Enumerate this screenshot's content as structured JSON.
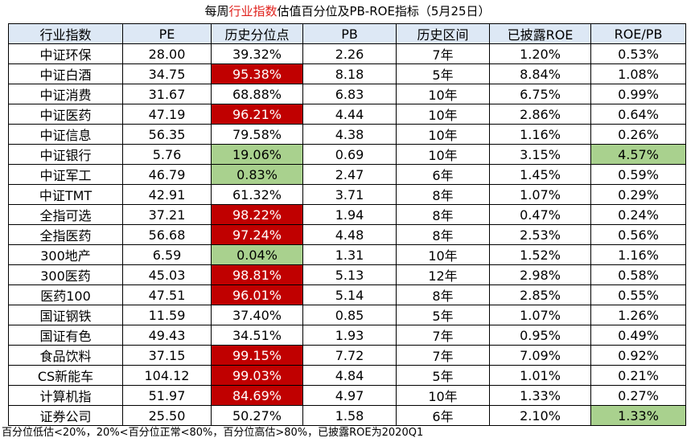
{
  "title": {
    "parts": [
      "每周",
      "行业指数",
      "估值百分位及PB-ROE指标（5月25日）"
    ]
  },
  "table": {
    "columns": [
      "行业指数",
      "PE",
      "历史分位点",
      "PB",
      "历史区间",
      "已披露ROE",
      "ROE/PB"
    ],
    "rows": [
      [
        "中证环保",
        "28.00",
        "39.32%",
        "2.26",
        "7年",
        "1.20%",
        "0.53%"
      ],
      [
        "中证白酒",
        "34.75",
        "95.38%",
        "8.18",
        "5年",
        "8.84%",
        "1.08%"
      ],
      [
        "中证消费",
        "31.67",
        "68.88%",
        "6.83",
        "10年",
        "6.75%",
        "0.99%"
      ],
      [
        "中证医药",
        "47.19",
        "96.21%",
        "4.44",
        "10年",
        "2.86%",
        "0.64%"
      ],
      [
        "中证信息",
        "56.35",
        "79.58%",
        "4.38",
        "10年",
        "1.16%",
        "0.26%"
      ],
      [
        "中证银行",
        "5.76",
        "19.06%",
        "0.69",
        "10年",
        "3.15%",
        "4.57%"
      ],
      [
        "中证军工",
        "46.79",
        "0.83%",
        "2.47",
        "6年",
        "1.45%",
        "0.59%"
      ],
      [
        "中证TMT",
        "42.91",
        "61.32%",
        "3.71",
        "8年",
        "1.07%",
        "0.29%"
      ],
      [
        "全指可选",
        "37.21",
        "98.22%",
        "1.94",
        "8年",
        "0.47%",
        "0.24%"
      ],
      [
        "全指医药",
        "56.68",
        "97.24%",
        "4.48",
        "8年",
        "2.53%",
        "0.56%"
      ],
      [
        "300地产",
        "6.59",
        "0.04%",
        "1.31",
        "10年",
        "1.52%",
        "1.16%"
      ],
      [
        "300医药",
        "45.03",
        "98.81%",
        "5.13",
        "12年",
        "2.98%",
        "0.58%"
      ],
      [
        "医药100",
        "47.51",
        "96.01%",
        "5.14",
        "8年",
        "2.85%",
        "0.55%"
      ],
      [
        "国证钢铁",
        "11.59",
        "37.40%",
        "0.85",
        "5年",
        "1.07%",
        "1.26%"
      ],
      [
        "国证有色",
        "49.43",
        "34.51%",
        "1.93",
        "7年",
        "0.95%",
        "0.49%"
      ],
      [
        "食品饮料",
        "37.15",
        "99.15%",
        "7.72",
        "7年",
        "7.09%",
        "0.92%"
      ],
      [
        "CS新能车",
        "104.12",
        "99.03%",
        "4.84",
        "5年",
        "1.01%",
        "0.21%"
      ],
      [
        "计算机指",
        "51.97",
        "84.69%",
        "4.97",
        "10年",
        "1.33%",
        "0.27%"
      ],
      [
        "证券公司",
        "25.50",
        "50.27%",
        "1.58",
        "6年",
        "2.10%",
        "1.33%"
      ]
    ],
    "highlight_colors": {
      "high": "#c00000",
      "low": "#a9d18e"
    },
    "highlights": [
      {
        "row": 1,
        "col": 2,
        "color": "high"
      },
      {
        "row": 3,
        "col": 2,
        "color": "high"
      },
      {
        "row": 5,
        "col": 2,
        "color": "low"
      },
      {
        "row": 5,
        "col": 6,
        "color": "low"
      },
      {
        "row": 6,
        "col": 2,
        "color": "low"
      },
      {
        "row": 8,
        "col": 2,
        "color": "high"
      },
      {
        "row": 9,
        "col": 2,
        "color": "high"
      },
      {
        "row": 10,
        "col": 2,
        "color": "low"
      },
      {
        "row": 11,
        "col": 2,
        "color": "high"
      },
      {
        "row": 12,
        "col": 2,
        "color": "high"
      },
      {
        "row": 15,
        "col": 2,
        "color": "high"
      },
      {
        "row": 16,
        "col": 2,
        "color": "high"
      },
      {
        "row": 17,
        "col": 2,
        "color": "high"
      },
      {
        "row": 18,
        "col": 6,
        "color": "low"
      }
    ]
  },
  "footer": "百分位低估<20%，20%<百分位正常<80%，百分位高估>80%，已披露ROE为2020Q1"
}
